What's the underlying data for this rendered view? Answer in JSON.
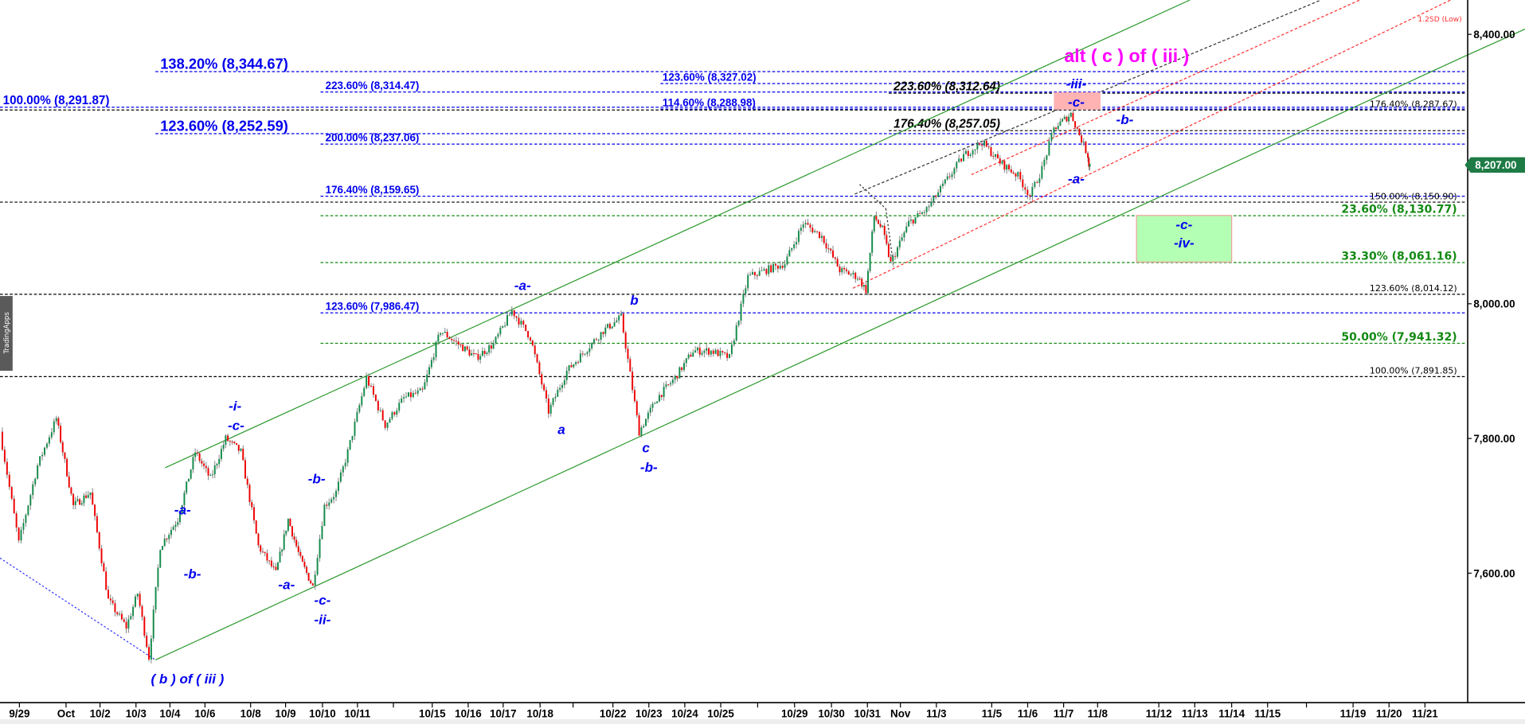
{
  "app": {
    "side_tab": "TradingApps"
  },
  "chart_data": {
    "type": "candlestick",
    "x_ticks": [
      "9/29",
      "Oct",
      "10/2",
      "10/3",
      "10/4",
      "10/6",
      "10/8",
      "10/9",
      "10/10",
      "10/11",
      "10/15",
      "10/16",
      "10/17",
      "10/18",
      "10/22",
      "10/23",
      "10/24",
      "10/25",
      "10/29",
      "10/30",
      "10/31",
      "Nov",
      "11/3",
      "11/5",
      "11/6",
      "11/7",
      "11/8",
      "11/12",
      "11/13",
      "11/14",
      "11/15",
      "11/19",
      "11/20",
      "11/21"
    ],
    "y_ticks": [
      {
        "value": 8400,
        "label": "8,400.00"
      },
      {
        "value": 8000,
        "label": "8,000.00"
      },
      {
        "value": 7800,
        "label": "7,800.00"
      },
      {
        "value": 7600,
        "label": "7,600.00"
      }
    ],
    "ylim": [
      7420,
      8470
    ],
    "last_price": {
      "value": 8207,
      "label": "8,207.00",
      "color": "#1e7b45"
    },
    "price_path": [
      [
        "9/29",
        7810
      ],
      [
        "9/29",
        7645
      ],
      [
        "9/29",
        7760
      ],
      [
        "Oct",
        7830
      ],
      [
        "Oct",
        7700
      ],
      [
        "10/2",
        7720
      ],
      [
        "10/2",
        7560
      ],
      [
        "10/3",
        7520
      ],
      [
        "10/3",
        7570
      ],
      [
        "10/3",
        7475
      ],
      [
        "10/4",
        7640
      ],
      [
        "10/4",
        7680
      ],
      [
        "10/6",
        7780
      ],
      [
        "10/6",
        7740
      ],
      [
        "10/6",
        7800
      ],
      [
        "10/8",
        7780
      ],
      [
        "10/8",
        7640
      ],
      [
        "10/9",
        7600
      ],
      [
        "10/9",
        7680
      ],
      [
        "10/9",
        7620
      ],
      [
        "10/10",
        7580
      ],
      [
        "10/10",
        7700
      ],
      [
        "10/10",
        7720
      ],
      [
        "10/11",
        7780
      ],
      [
        "10/11",
        7890
      ],
      [
        "10/11",
        7820
      ],
      [
        "10/11",
        7860
      ],
      [
        "10/15",
        7870
      ],
      [
        "10/15",
        7960
      ],
      [
        "10/16",
        7940
      ],
      [
        "10/16",
        7920
      ],
      [
        "10/17",
        7940
      ],
      [
        "10/17",
        7990
      ],
      [
        "10/18",
        7950
      ],
      [
        "10/18",
        7840
      ],
      [
        "10/18",
        7900
      ],
      [
        "10/18",
        7930
      ],
      [
        "10/22",
        7960
      ],
      [
        "10/22",
        7980
      ],
      [
        "10/23",
        7810
      ],
      [
        "10/23",
        7860
      ],
      [
        "10/24",
        7890
      ],
      [
        "10/24",
        7930
      ],
      [
        "10/25",
        7930
      ],
      [
        "10/25",
        7920
      ],
      [
        "10/25",
        8040
      ],
      [
        "10/25",
        8050
      ],
      [
        "10/29",
        8060
      ],
      [
        "10/29",
        8120
      ],
      [
        "10/30",
        8100
      ],
      [
        "10/30",
        8050
      ],
      [
        "10/31",
        8040
      ],
      [
        "10/31",
        8020
      ],
      [
        "10/31",
        8130
      ],
      [
        "10/31",
        8110
      ],
      [
        "Nov",
        8060
      ],
      [
        "Nov",
        8120
      ],
      [
        "11/3",
        8140
      ],
      [
        "11/3",
        8180
      ],
      [
        "11/3",
        8220
      ],
      [
        "11/5",
        8240
      ],
      [
        "11/5",
        8210
      ],
      [
        "11/6",
        8190
      ],
      [
        "11/6",
        8160
      ],
      [
        "11/6",
        8200
      ],
      [
        "11/7",
        8260
      ],
      [
        "11/7",
        8282
      ],
      [
        "11/8",
        8220
      ],
      [
        "11/8",
        8207
      ]
    ],
    "fib_levels": [
      {
        "label": "138.20% (8,344.67)",
        "price": 8344.67,
        "color": "#0000ee",
        "style": "big"
      },
      {
        "label": "123.60% (8,327.02)",
        "price": 8327.02,
        "color": "#0000ee",
        "style": "small"
      },
      {
        "label": "223.60% (8,314.47)",
        "price": 8314.47,
        "color": "#0000ee",
        "style": "small"
      },
      {
        "label": "223.60% (8,312.64)",
        "price": 8312.64,
        "color": "#000000",
        "style": "blackit"
      },
      {
        "label": "100.00% (8,291.87)",
        "price": 8291.87,
        "color": "#0000ee",
        "style": "med"
      },
      {
        "label": "114.60% (8,288.98)",
        "price": 8288.98,
        "color": "#0000ee",
        "style": "small"
      },
      {
        "label": "176.40% (8,287.67)",
        "price": 8287.67,
        "color": "#000000",
        "style": "rightsm"
      },
      {
        "label": "176.40% (8,257.05)",
        "price": 8257.05,
        "color": "#000000",
        "style": "blackit"
      },
      {
        "label": "123.60% (8,252.59)",
        "price": 8252.59,
        "color": "#0000ee",
        "style": "big"
      },
      {
        "label": "200.00% (8,237.06)",
        "price": 8237.06,
        "color": "#0000ee",
        "style": "small"
      },
      {
        "label": "176.40% (8,159.65)",
        "price": 8159.65,
        "color": "#0000ee",
        "style": "small"
      },
      {
        "label": "150.00% (8,150.90)",
        "price": 8150.9,
        "color": "#000000",
        "style": "rightsm"
      },
      {
        "label": "23.60% (8,130.77)",
        "price": 8130.77,
        "color": "#138a13",
        "style": "green"
      },
      {
        "label": "33.30% (8,061.16)",
        "price": 8061.16,
        "color": "#138a13",
        "style": "green"
      },
      {
        "label": "123.60% (8,014.12)",
        "price": 8014.12,
        "color": "#000000",
        "style": "rightsm"
      },
      {
        "label": "123.60% (7,986.47)",
        "price": 7986.47,
        "color": "#0000ee",
        "style": "small"
      },
      {
        "label": "50.00% (7,941.32)",
        "price": 7941.32,
        "color": "#138a13",
        "style": "green"
      },
      {
        "label": "100.00% (7,891.85)",
        "price": 7891.85,
        "color": "#000000",
        "style": "rightsm"
      }
    ],
    "wave_labels": [
      "( b ) of ( iii )",
      "-i-",
      "-c-",
      "-a-",
      "-b-",
      "-b-",
      "-a-",
      "-c-",
      "-ii-",
      "-a-",
      "a",
      "b",
      "c",
      "-b-",
      "-iii-",
      "-c-",
      "-b-",
      "-a-",
      "-c-",
      "-iv-"
    ],
    "alt_label": {
      "text": "alt ( c ) of ( iii )",
      "color": "#ff00ff"
    },
    "sd_label": {
      "text": "1.2SD (Low)",
      "color": "#ff3333"
    },
    "colors": {
      "up": "#138a4a",
      "down": "#ee0000",
      "wick": "#808080",
      "channel": "#2e9a2e",
      "target_box": "#b3ffb3",
      "top_box": "#ffb3b3"
    }
  }
}
